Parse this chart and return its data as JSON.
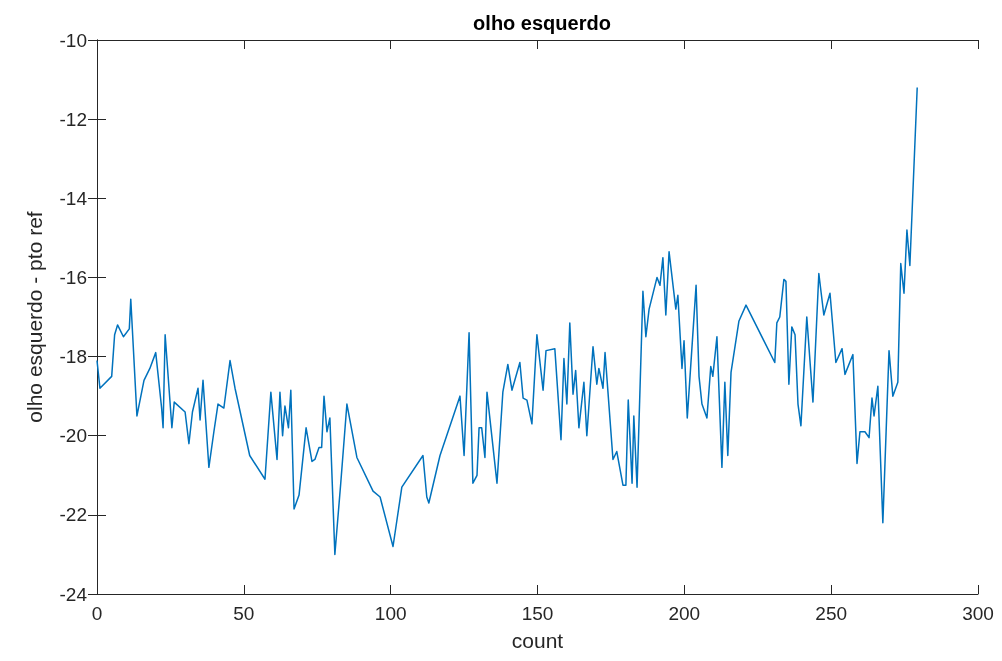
{
  "chart_data": {
    "type": "line",
    "title": "olho esquerdo",
    "xlabel": "count",
    "ylabel": "olho esquerdo - pto ref",
    "x": [
      0,
      1,
      5,
      6,
      7,
      9,
      11,
      11.5,
      13.6,
      16,
      18,
      20,
      22,
      22.5,
      23.2,
      25.5,
      26.3,
      30,
      31.3,
      32.5,
      34.4,
      35.1,
      36.1,
      38.1,
      39.8,
      41.2,
      43.2,
      45.3,
      47,
      52,
      57.2,
      59.2,
      61.3,
      62.3,
      63.2,
      64,
      65.2,
      66,
      67.1,
      68.8,
      71.2,
      73.2,
      74.2,
      75.6,
      76.5,
      77.3,
      78.3,
      79.3,
      81,
      83,
      85.1,
      88.5,
      94,
      96.4,
      100.8,
      103.8,
      111,
      112.3,
      113,
      116.8,
      123.6,
      125,
      126.7,
      128,
      129.4,
      130.1,
      131,
      132.1,
      132.8,
      136.2,
      138.2,
      139.9,
      141.3,
      144,
      145.1,
      146.4,
      148.1,
      149.8,
      151.9,
      152.9,
      155.9,
      158,
      159,
      160,
      161,
      162.1,
      163,
      164.1,
      165.8,
      166.8,
      168.9,
      170.2,
      170.9,
      172.3,
      173,
      175.7,
      177,
      179.1,
      180.1,
      180.9,
      182.2,
      182.8,
      183.9,
      185.9,
      186.9,
      188,
      190.7,
      191.7,
      192.7,
      193.7,
      194.8,
      197.1,
      197.8,
      199.2,
      199.9,
      201,
      204,
      205,
      206,
      207.7,
      209,
      209.7,
      211.1,
      212.8,
      213.8,
      214.8,
      215.9,
      218.6,
      221,
      230.8,
      231.5,
      232.5,
      233.9,
      234.6,
      235.6,
      236.6,
      237.7,
      238.7,
      239.7,
      241.7,
      243.8,
      245.8,
      247.5,
      249.6,
      251.6,
      253.7,
      254.7,
      257.4,
      258.8,
      259.8,
      261.5,
      262.9,
      263.9,
      264.6,
      265.9,
      267.6,
      269.7,
      271,
      272.7,
      273.7,
      274.8,
      275.8,
      276.8,
      279.3
    ],
    "values": [
      -18.1,
      -18.8,
      -18.5,
      -17.45,
      -17.2,
      -17.5,
      -17.3,
      -16.55,
      -19.5,
      -18.6,
      -18.3,
      -17.9,
      -19.3,
      -19.8,
      -17.45,
      -19.8,
      -19.15,
      -19.4,
      -20.2,
      -19.4,
      -18.8,
      -19.6,
      -18.6,
      -20.8,
      -19.9,
      -19.2,
      -19.3,
      -18.1,
      -18.8,
      -20.5,
      -21.1,
      -18.9,
      -20.6,
      -18.9,
      -20,
      -19.25,
      -19.8,
      -18.85,
      -21.85,
      -21.5,
      -19.8,
      -20.65,
      -20.6,
      -20.3,
      -20.3,
      -19,
      -19.9,
      -19.55,
      -23,
      -21.2,
      -19.2,
      -20.55,
      -21.4,
      -21.55,
      -22.8,
      -21.3,
      -20.5,
      -21.55,
      -21.7,
      -20.5,
      -19,
      -20.5,
      -17.4,
      -21.2,
      -21,
      -19.8,
      -19.8,
      -20.55,
      -18.9,
      -21.2,
      -18.9,
      -18.2,
      -18.85,
      -18.15,
      -19.05,
      -19.1,
      -19.7,
      -17.45,
      -18.85,
      -17.85,
      -17.8,
      -20.1,
      -18.05,
      -19.2,
      -17.15,
      -18.95,
      -18.35,
      -19.8,
      -18.65,
      -20,
      -17.75,
      -18.7,
      -18.3,
      -18.8,
      -17.9,
      -20.6,
      -20.4,
      -21.25,
      -21.25,
      -19.1,
      -21.2,
      -19.5,
      -21.3,
      -16.35,
      -17.5,
      -16.8,
      -16,
      -16.2,
      -15.5,
      -16.95,
      -15.35,
      -16.8,
      -16.45,
      -18.3,
      -17.6,
      -19.55,
      -16.2,
      -18.5,
      -19.2,
      -19.55,
      -18.25,
      -18.5,
      -17.5,
      -20.8,
      -18.65,
      -20.5,
      -18.4,
      -17.1,
      -16.7,
      -18.15,
      -17.15,
      -17,
      -16.05,
      -16.1,
      -18.7,
      -17.25,
      -17.45,
      -19.2,
      -19.75,
      -17,
      -19.15,
      -15.9,
      -16.95,
      -16.4,
      -18.15,
      -17.8,
      -18.45,
      -17.95,
      -20.7,
      -19.9,
      -19.9,
      -20.05,
      -19.05,
      -19.5,
      -18.75,
      -22.2,
      -17.85,
      -19,
      -18.65,
      -15.65,
      -16.4,
      -14.8,
      -15.7,
      -11.2
    ],
    "color": "#0072bd",
    "xlim": [
      0,
      300
    ],
    "xticks": [
      0,
      50,
      100,
      150,
      200,
      250,
      300
    ],
    "ylim": [
      -24,
      -10
    ],
    "yticks": [
      -24,
      -22,
      -20,
      -18,
      -16,
      -14,
      -12,
      -10
    ],
    "grid": false,
    "marker": "none",
    "line_style": "solid"
  }
}
